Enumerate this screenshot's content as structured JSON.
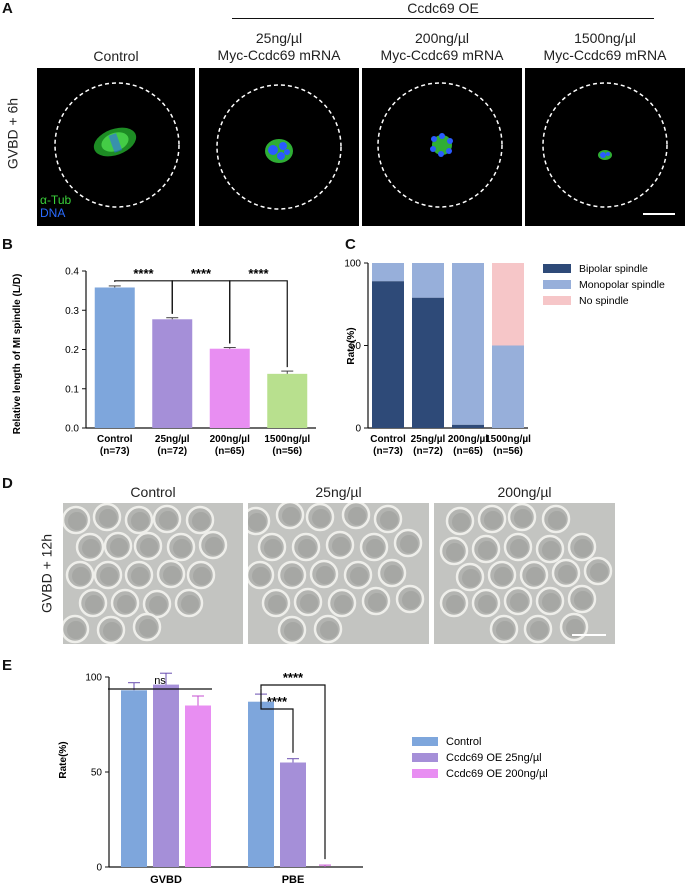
{
  "panels": {
    "A": "A",
    "B": "B",
    "C": "C",
    "D": "D",
    "E": "E"
  },
  "panel_a": {
    "group_label": "Ccdc69 OE",
    "row_label": "GVBD + 6h",
    "stain_tub": "α-Tub",
    "stain_dna": "DNA",
    "columns": [
      {
        "line1": "Control",
        "line2": ""
      },
      {
        "line1": "25ng/µl",
        "line2": "Myc-Ccdc69 mRNA"
      },
      {
        "line1": "200ng/µl",
        "line2": "Myc-Ccdc69 mRNA"
      },
      {
        "line1": "1500ng/µl",
        "line2": "Myc-Ccdc69 mRNA"
      }
    ],
    "colors": {
      "tub": "#3bd23b",
      "dna": "#2a5bff"
    }
  },
  "panel_d": {
    "row_label": "GVBD + 12h",
    "columns": [
      "Control",
      "25ng/µl",
      "200ng/µl"
    ]
  },
  "chart_data": [
    {
      "panel": "B",
      "type": "bar",
      "ylabel": "Relative length of MI spindle (L/D)",
      "ylim": [
        0,
        0.4
      ],
      "yticks": [
        "0.0",
        "0.1",
        "0.2",
        "0.3",
        "0.4"
      ],
      "categories": [
        {
          "line1": "Control",
          "line2": "(n=73)"
        },
        {
          "line1": "25ng/µl",
          "line2": "(n=72)"
        },
        {
          "line1": "200ng/µl",
          "line2": "(n=65)"
        },
        {
          "line1": "1500ng/µl",
          "line2": "(n=56)"
        }
      ],
      "values": [
        0.358,
        0.277,
        0.202,
        0.138
      ],
      "errors": [
        0.004,
        0.004,
        0.003,
        0.007
      ],
      "colors": [
        "#7ea6dc",
        "#a58fd8",
        "#e88ef2",
        "#b8e08e"
      ],
      "significance": [
        {
          "from": 0,
          "to": 1,
          "label": "****"
        },
        {
          "from": 1,
          "to": 2,
          "label": "****"
        },
        {
          "from": 2,
          "to": 3,
          "label": "****"
        }
      ]
    },
    {
      "panel": "C",
      "type": "bar",
      "stacked": true,
      "ylabel": "Rate(%)",
      "ylim": [
        0,
        100
      ],
      "yticks": [
        "0",
        "50",
        "100"
      ],
      "categories": [
        {
          "line1": "Control",
          "line2": "(n=73)"
        },
        {
          "line1": "25ng/µl",
          "line2": "(n=72)"
        },
        {
          "line1": "200ng/µl",
          "line2": "(n=65)"
        },
        {
          "line1": "1500ng/µl",
          "line2": "(n=56)"
        }
      ],
      "series": [
        {
          "name": "Bipolar spindle",
          "color": "#2e4a78",
          "values": [
            89,
            79,
            2,
            0
          ]
        },
        {
          "name": "Monopolar spindle",
          "color": "#97afda",
          "values": [
            11,
            21,
            98,
            50
          ]
        },
        {
          "name": "No spindle",
          "color": "#f6c6c8",
          "values": [
            0,
            0,
            0,
            50
          ]
        }
      ],
      "legend": "right"
    },
    {
      "panel": "E",
      "type": "bar",
      "ylabel": "Rate(%)",
      "ylim": [
        0,
        100
      ],
      "yticks": [
        "0",
        "50",
        "100"
      ],
      "categories": [
        "GVBD",
        "PBE"
      ],
      "series": [
        {
          "name": "Control",
          "color": "#7ea6dc",
          "values": [
            93,
            87
          ],
          "errors": [
            4,
            4
          ]
        },
        {
          "name": "Ccdc69 OE 25ng/µl",
          "color": "#a58fd8",
          "values": [
            96,
            55
          ],
          "errors": [
            6,
            2
          ]
        },
        {
          "name": "Ccdc69 OE 200ng/µl",
          "color": "#e88ef2",
          "values": [
            85,
            0
          ],
          "errors": [
            5,
            1
          ]
        }
      ],
      "significance": [
        {
          "group": 0,
          "label": "ns"
        },
        {
          "group": 1,
          "from": 0,
          "to": 1,
          "label": "****"
        },
        {
          "group": 1,
          "from": 0,
          "to": 2,
          "label": "****"
        }
      ],
      "legend": "right"
    }
  ]
}
